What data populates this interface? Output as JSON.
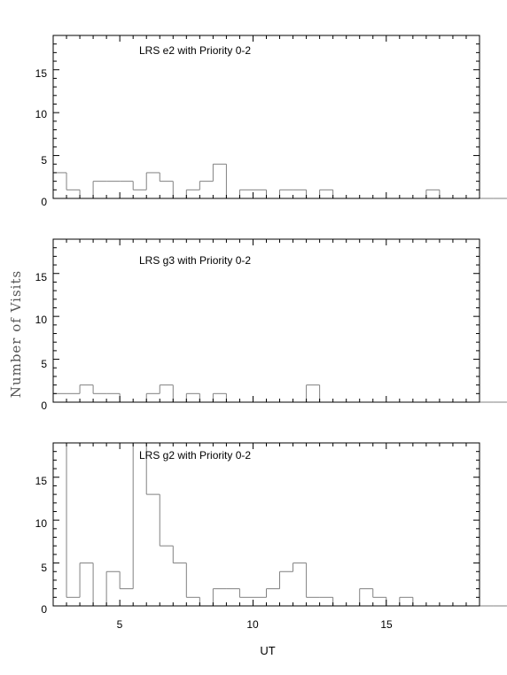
{
  "chart_data": [
    {
      "type": "histogram",
      "title": "LRS e2 with Priority 0-2",
      "bin_edges_start": 2.5,
      "bin_width": 0.5,
      "values": [
        3,
        1,
        0,
        2,
        2,
        2,
        1,
        3,
        2,
        0,
        1,
        2,
        4,
        0,
        1,
        1,
        0,
        1,
        1,
        0,
        1,
        0,
        0,
        0,
        0,
        0,
        0,
        0,
        1,
        0,
        0,
        0,
        0,
        0,
        0,
        0
      ],
      "xlim": [
        2.5,
        18.5
      ],
      "ylim": [
        0,
        19
      ],
      "yticks": [
        0,
        5,
        10,
        15
      ]
    },
    {
      "type": "histogram",
      "title": "LRS g3 with Priority 0-2",
      "bin_edges_start": 2.5,
      "bin_width": 0.5,
      "values": [
        1,
        1,
        2,
        1,
        1,
        0,
        0,
        1,
        2,
        0,
        1,
        0,
        1,
        0,
        0,
        0,
        0,
        0,
        0,
        2,
        0,
        0,
        0,
        0,
        0,
        0,
        0,
        0,
        0,
        0,
        0,
        0,
        0,
        0,
        0,
        0
      ],
      "xlim": [
        2.5,
        18.5
      ],
      "ylim": [
        0,
        19
      ],
      "yticks": [
        0,
        5,
        10,
        15
      ]
    },
    {
      "type": "histogram",
      "title": "LRS g2 with Priority 0-2",
      "bin_edges_start": 2.5,
      "bin_width": 0.5,
      "values": [
        19,
        1,
        5,
        0,
        4,
        2,
        19,
        13,
        7,
        5,
        1,
        0,
        2,
        2,
        1,
        1,
        2,
        4,
        5,
        1,
        1,
        0,
        0,
        2,
        1,
        0,
        1,
        0,
        0,
        0,
        0,
        0,
        0,
        0,
        0,
        0
      ],
      "xlim": [
        2.5,
        18.5
      ],
      "ylim": [
        0,
        19
      ],
      "yticks": [
        0,
        5,
        10,
        15
      ],
      "xticks": [
        5,
        10,
        15
      ]
    }
  ],
  "xlabel": "UT",
  "ylabel": "Number of Visits",
  "colors": {
    "axis": "#000000",
    "histogram": "#808080"
  }
}
